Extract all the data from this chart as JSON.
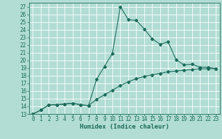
{
  "xlabel": "Humidex (Indice chaleur)",
  "background_color": "#b2ddd4",
  "grid_color": "#ffffff",
  "line_color": "#1a6b5a",
  "xlim": [
    -0.5,
    23.5
  ],
  "ylim": [
    13,
    27.5
  ],
  "xticks": [
    0,
    1,
    2,
    3,
    4,
    5,
    6,
    7,
    8,
    9,
    10,
    11,
    12,
    13,
    14,
    15,
    16,
    17,
    18,
    19,
    20,
    21,
    22,
    23
  ],
  "yticks": [
    13,
    14,
    15,
    16,
    17,
    18,
    19,
    20,
    21,
    22,
    23,
    24,
    25,
    26,
    27
  ],
  "line1_x": [
    0,
    1,
    2,
    3,
    4,
    5,
    6,
    7,
    8,
    9,
    10,
    11,
    12,
    13,
    14,
    15,
    16,
    17,
    18,
    19,
    20,
    21,
    22,
    23
  ],
  "line1_y": [
    13,
    13.5,
    14.2,
    14.2,
    14.3,
    14.4,
    14.2,
    14.1,
    17.5,
    19.2,
    20.9,
    27.0,
    25.3,
    25.2,
    24.1,
    22.8,
    22.1,
    22.4,
    20.1,
    19.4,
    19.5,
    19.1,
    19.1,
    18.9
  ],
  "line2_x": [
    0,
    1,
    2,
    3,
    4,
    5,
    6,
    7,
    8,
    9,
    10,
    11,
    12,
    13,
    14,
    15,
    16,
    17,
    18,
    19,
    20,
    21,
    22,
    23
  ],
  "line2_y": [
    13,
    13.5,
    14.2,
    14.2,
    14.3,
    14.4,
    14.2,
    14.1,
    14.9,
    15.5,
    16.1,
    16.7,
    17.2,
    17.6,
    17.9,
    18.1,
    18.3,
    18.5,
    18.6,
    18.7,
    18.8,
    18.9,
    18.9,
    18.9
  ],
  "marker": "D",
  "markersize": 2.0,
  "linewidth": 0.8,
  "tick_fontsize": 5.5,
  "xlabel_fontsize": 6.5
}
